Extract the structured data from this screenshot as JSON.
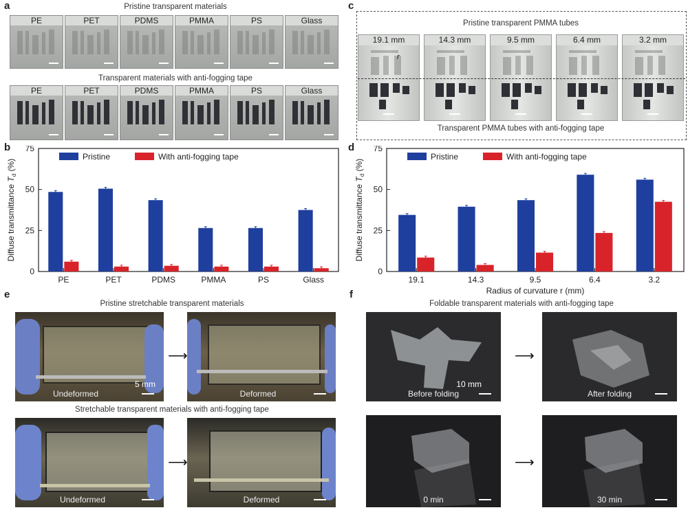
{
  "panel_a": {
    "label": "a",
    "title_top": "Pristine transparent materials",
    "title_bottom": "Transparent materials with anti-fogging tape",
    "materials": [
      "PE",
      "PET",
      "PDMS",
      "PMMA",
      "PS",
      "Glass"
    ]
  },
  "panel_c": {
    "label": "c",
    "title_top": "Pristine transparent PMMA tubes",
    "title_bottom": "Transparent PMMA tubes with anti-fogging tape",
    "tubes": [
      "19.1 mm",
      "14.3 mm",
      "9.5 mm",
      "6.4 mm",
      "3.2 mm"
    ],
    "marker": "r"
  },
  "panel_e": {
    "label": "e",
    "title_top": "Pristine stretchable transparent materials",
    "title_bottom": "Stretchable transparent materials with anti-fogging tape",
    "caption_undeformed": "Undeformed",
    "caption_deformed": "Deformed",
    "scale_label": "5 mm"
  },
  "panel_f": {
    "label": "f",
    "title": "Foldable transparent materials with anti-fogging tape",
    "caption_before": "Before folding",
    "caption_after": "After folding",
    "caption_t0": "0 min",
    "caption_t30": "30 min",
    "scale_label": "10 mm"
  },
  "colors": {
    "pristine": "#1f3f9e",
    "tape": "#d9232a"
  },
  "chart_data": [
    {
      "id": "b",
      "label": "b",
      "type": "bar",
      "categories": [
        "PE",
        "PET",
        "PDMS",
        "PMMA",
        "PS",
        "Glass"
      ],
      "series": [
        {
          "name": "Pristine",
          "values": [
            48.5,
            50.5,
            43.5,
            26.5,
            26.5,
            37.5
          ]
        },
        {
          "name": "With anti-fogging tape",
          "values": [
            6.0,
            3.0,
            3.5,
            3.0,
            3.0,
            2.0
          ]
        }
      ],
      "ylabel_main": "Diffuse transmittance ",
      "ylabel_sym": "T",
      "ylabel_sub": "d",
      "ylabel_unit": " (%)",
      "xlabel": "",
      "ylim": [
        0,
        75
      ],
      "yticks": [
        "0",
        "25",
        "50",
        "75"
      ],
      "legend": "top-left"
    },
    {
      "id": "d",
      "label": "d",
      "type": "bar",
      "categories": [
        "19.1",
        "14.3",
        "9.5",
        "6.4",
        "3.2"
      ],
      "series": [
        {
          "name": "Pristine",
          "values": [
            34.5,
            39.5,
            43.5,
            59.0,
            56.0
          ]
        },
        {
          "name": "With anti-fogging tape",
          "values": [
            8.5,
            4.0,
            11.5,
            23.5,
            42.5
          ]
        }
      ],
      "ylabel_main": "Diffuse transmittance ",
      "ylabel_sym": "T",
      "ylabel_sub": "d",
      "ylabel_unit": " (%)",
      "xlabel": "Radius of curvature r (mm)",
      "ylim": [
        0,
        75
      ],
      "yticks": [
        "0",
        "25",
        "50",
        "75"
      ],
      "legend": "top-left"
    }
  ]
}
